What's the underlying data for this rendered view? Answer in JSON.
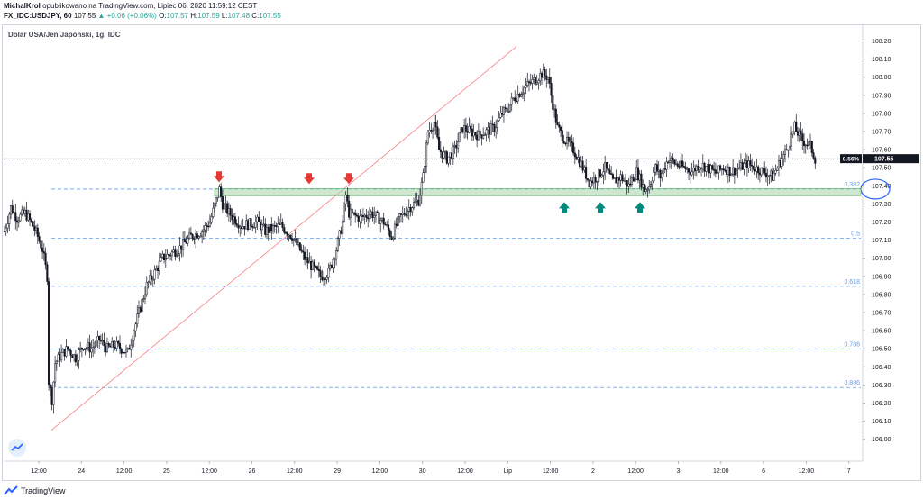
{
  "header": {
    "author": "MichalKrol",
    "published": "opublikowano na TradingView.com, Lipiec 06, 2020 11:59:12 CEST",
    "symbol": "FX_IDC:USDJPY, 60",
    "last": "107.55",
    "change": "▲ +0.06 (+0.06%)",
    "o_label": "O:",
    "o": "107.57",
    "h_label": "H:",
    "h": "107.59",
    "l_label": "L:",
    "l": "107.48",
    "c_label": "C:",
    "c": "107.55"
  },
  "chart_title": "Dolar USA/Jen Japoński, 1g, IDC",
  "footer": {
    "brand": "TradingView",
    "logo_icon": "tradingview-logo-icon"
  },
  "colors": {
    "up": "#26a69a",
    "down": "#ef5350",
    "candle": "#131722",
    "fib": "#5b9cf6",
    "zone": "#a5d6a7",
    "trend": "#f77c80"
  },
  "chart_data": {
    "type": "candlestick",
    "y_axis": {
      "min": 105.92,
      "max": 108.24,
      "ticks": [
        "108.20",
        "108.10",
        "108.00",
        "107.90",
        "107.80",
        "107.70",
        "107.60",
        "107.50",
        "107.40",
        "107.30",
        "107.20",
        "107.10",
        "107.00",
        "106.90",
        "106.80",
        "106.70",
        "106.60",
        "106.50",
        "106.40",
        "106.30",
        "106.20",
        "106.10",
        "106.00"
      ]
    },
    "x_axis": {
      "labels": [
        "12:00",
        "24",
        "12:00",
        "25",
        "12:00",
        "26",
        "12:00",
        "29",
        "12:00",
        "30",
        "12:00",
        "Lip",
        "12:00",
        "2",
        "12:00",
        "3",
        "12:00",
        "6",
        "12:00",
        "7"
      ]
    },
    "current_price": {
      "label": "107.55",
      "percent_label": "0.56%",
      "value": 107.55
    },
    "price_path": [
      [
        0,
        107.15
      ],
      [
        4,
        107.28
      ],
      [
        8,
        107.22
      ],
      [
        13,
        107.25
      ],
      [
        18,
        107.18
      ],
      [
        21,
        107.12
      ],
      [
        24,
        107.05
      ],
      [
        27,
        106.9
      ],
      [
        28,
        106.32
      ],
      [
        30,
        106.22
      ],
      [
        32,
        106.42
      ],
      [
        36,
        106.47
      ],
      [
        40,
        106.5
      ],
      [
        45,
        106.45
      ],
      [
        50,
        106.52
      ],
      [
        55,
        106.5
      ],
      [
        60,
        106.55
      ],
      [
        65,
        106.5
      ],
      [
        70,
        106.52
      ],
      [
        78,
        106.48
      ],
      [
        85,
        106.7
      ],
      [
        90,
        106.85
      ],
      [
        95,
        106.92
      ],
      [
        100,
        107.0
      ],
      [
        110,
        107.05
      ],
      [
        118,
        107.12
      ],
      [
        125,
        107.15
      ],
      [
        130,
        107.2
      ],
      [
        134,
        107.32
      ],
      [
        136,
        107.38
      ],
      [
        138,
        107.3
      ],
      [
        142,
        107.25
      ],
      [
        150,
        107.18
      ],
      [
        160,
        107.2
      ],
      [
        165,
        107.15
      ],
      [
        175,
        107.18
      ],
      [
        182,
        107.12
      ],
      [
        190,
        107.0
      ],
      [
        200,
        106.9
      ],
      [
        205,
        106.92
      ],
      [
        210,
        107.05
      ],
      [
        214,
        107.2
      ],
      [
        216,
        107.35
      ],
      [
        218,
        107.25
      ],
      [
        225,
        107.22
      ],
      [
        232,
        107.25
      ],
      [
        240,
        107.2
      ],
      [
        245,
        107.12
      ],
      [
        250,
        107.22
      ],
      [
        256,
        107.28
      ],
      [
        262,
        107.32
      ],
      [
        265,
        107.45
      ],
      [
        268,
        107.7
      ],
      [
        272,
        107.75
      ],
      [
        275,
        107.6
      ],
      [
        280,
        107.55
      ],
      [
        285,
        107.6
      ],
      [
        290,
        107.72
      ],
      [
        300,
        107.68
      ],
      [
        310,
        107.72
      ],
      [
        315,
        107.8
      ],
      [
        318,
        107.82
      ],
      [
        322,
        107.88
      ],
      [
        330,
        107.95
      ],
      [
        335,
        107.98
      ],
      [
        340,
        108.02
      ],
      [
        344,
        108.0
      ],
      [
        347,
        107.85
      ],
      [
        350,
        107.72
      ],
      [
        355,
        107.65
      ],
      [
        360,
        107.6
      ],
      [
        365,
        107.52
      ],
      [
        370,
        107.42
      ],
      [
        375,
        107.45
      ],
      [
        380,
        107.5
      ],
      [
        385,
        107.42
      ],
      [
        390,
        107.45
      ],
      [
        395,
        107.4
      ],
      [
        400,
        107.48
      ],
      [
        405,
        107.38
      ],
      [
        408,
        107.4
      ],
      [
        412,
        107.5
      ],
      [
        415,
        107.45
      ],
      [
        420,
        107.55
      ],
      [
        425,
        107.52
      ],
      [
        430,
        107.5
      ],
      [
        435,
        107.48
      ],
      [
        440,
        107.52
      ],
      [
        445,
        107.5
      ],
      [
        450,
        107.47
      ],
      [
        455,
        107.5
      ],
      [
        460,
        107.48
      ],
      [
        465,
        107.5
      ],
      [
        470,
        107.52
      ],
      [
        475,
        107.5
      ],
      [
        480,
        107.48
      ],
      [
        486,
        107.45
      ],
      [
        490,
        107.52
      ],
      [
        495,
        107.6
      ],
      [
        500,
        107.72
      ],
      [
        505,
        107.65
      ],
      [
        510,
        107.62
      ],
      [
        513,
        107.55
      ]
    ],
    "fibonacci_levels": [
      {
        "ratio": "0.382",
        "value": 107.382
      },
      {
        "ratio": "0.5",
        "value": 107.111
      },
      {
        "ratio": "0.618",
        "value": 106.845
      },
      {
        "ratio": "0.786",
        "value": 106.498
      },
      {
        "ratio": "0.886",
        "value": 106.286
      }
    ],
    "fib_low": 106.05,
    "fib_high": 108.17,
    "support_resistance_zone": {
      "low": 107.345,
      "high": 107.385
    },
    "resistance_touches_down_arrows": [
      107.4,
      107.39,
      107.39
    ],
    "support_touches_up_arrows": [
      107.33,
      107.33,
      107.33
    ]
  }
}
